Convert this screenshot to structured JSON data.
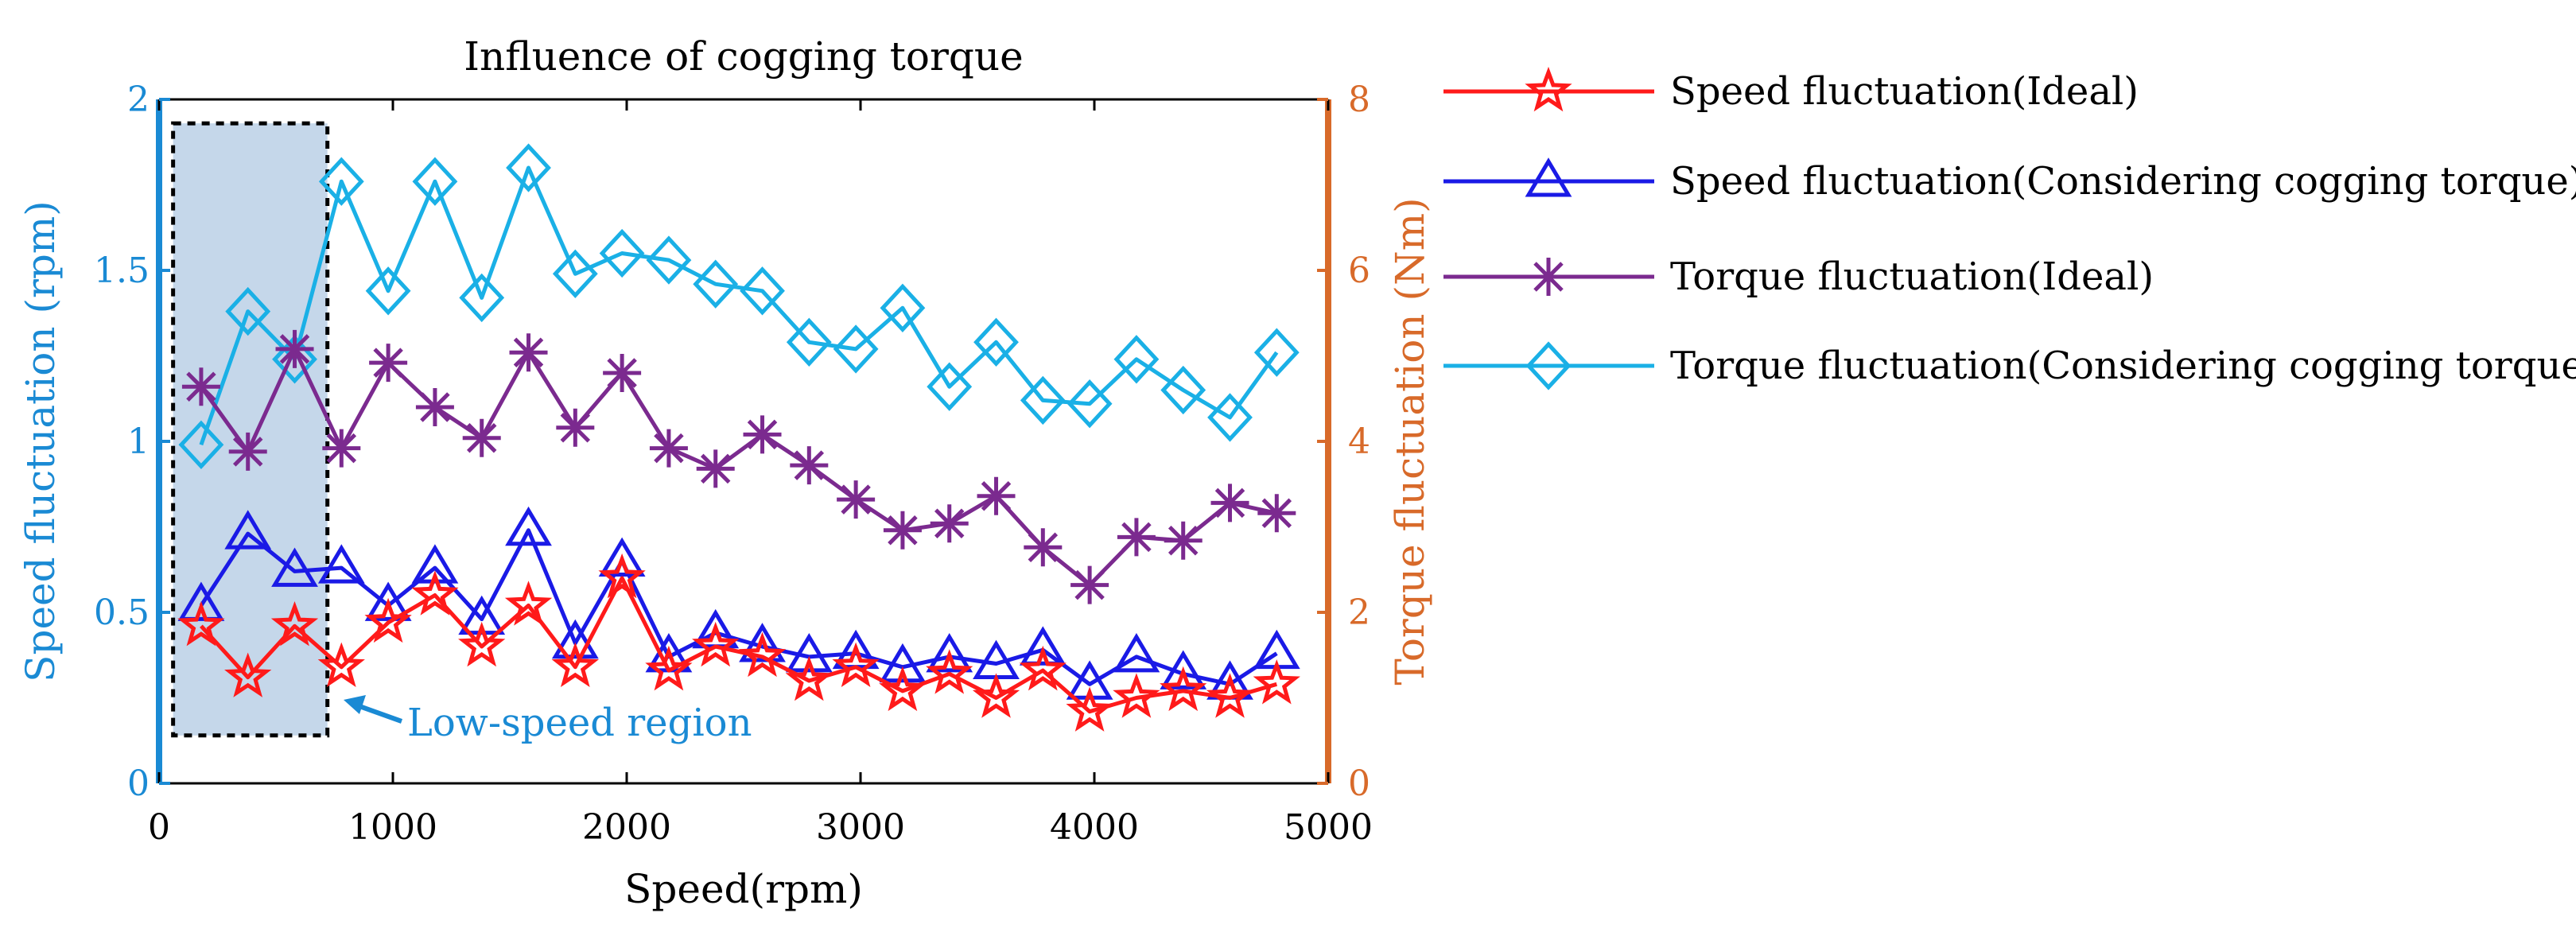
{
  "chart_data": {
    "type": "line",
    "title": "Influence of cogging torque",
    "xlabel": "Speed(rpm)",
    "ylabel_left": "Speed fluctuation (rpm)",
    "ylabel_right": "Torque fluctuation (Nm)",
    "xlim": [
      0,
      5000
    ],
    "ylim_left": [
      0,
      2
    ],
    "ylim_right": [
      0,
      8
    ],
    "x_ticks": [
      "0",
      "1000",
      "2000",
      "3000",
      "4000",
      "5000"
    ],
    "y_left_ticks": [
      "0",
      "0.5",
      "1",
      "1.5",
      "2"
    ],
    "y_right_ticks": [
      "0",
      "2",
      "4",
      "6",
      "8"
    ],
    "grid": false,
    "legend_position": "right",
    "annotation": "Low-speed region",
    "highlight_region": {
      "x": [
        60,
        720
      ],
      "y_left": [
        0.14,
        1.93
      ]
    },
    "colors": {
      "left_axis": "#1a8ad4",
      "right_axis": "#d86a2a",
      "red": "#ff1a1a",
      "blue": "#1a1ae6",
      "purple": "#7b2a8f",
      "cyan": "#1ab0e6",
      "region_fill": "#c5d7ea"
    },
    "x": [
      180,
      380,
      580,
      780,
      980,
      1180,
      1380,
      1580,
      1780,
      1980,
      2180,
      2380,
      2580,
      2780,
      2980,
      3180,
      3380,
      3580,
      3780,
      3980,
      4180,
      4380,
      4580,
      4780
    ],
    "series": [
      {
        "name": "Speed fluctuation(Ideal)",
        "axis": "left",
        "marker": "star",
        "color": "#ff1a1a",
        "values": [
          0.46,
          0.31,
          0.46,
          0.34,
          0.47,
          0.55,
          0.4,
          0.52,
          0.34,
          0.6,
          0.33,
          0.4,
          0.37,
          0.3,
          0.34,
          0.27,
          0.32,
          0.25,
          0.33,
          0.21,
          0.25,
          0.27,
          0.25,
          0.29
        ]
      },
      {
        "name": "Speed fluctuation(Considering cogging torque)",
        "axis": "left",
        "marker": "triangle",
        "color": "#1a1ae6",
        "values": [
          0.52,
          0.73,
          0.62,
          0.63,
          0.52,
          0.63,
          0.48,
          0.74,
          0.41,
          0.65,
          0.37,
          0.44,
          0.4,
          0.37,
          0.38,
          0.34,
          0.37,
          0.35,
          0.39,
          0.29,
          0.37,
          0.32,
          0.29,
          0.38
        ]
      },
      {
        "name": "Torque fluctuation(Ideal)",
        "axis": "right",
        "marker": "asterisk",
        "color": "#7b2a8f",
        "values": [
          4.64,
          3.88,
          5.08,
          3.92,
          4.92,
          4.4,
          4.04,
          5.04,
          4.16,
          4.8,
          3.92,
          3.68,
          4.08,
          3.72,
          3.32,
          2.96,
          3.04,
          3.36,
          2.76,
          2.32,
          2.88,
          2.84,
          3.28,
          3.16
        ]
      },
      {
        "name": "Torque fluctuation(Considering cogging torque)",
        "axis": "right",
        "marker": "diamond",
        "color": "#1ab0e6",
        "values": [
          3.96,
          5.52,
          4.96,
          7.04,
          5.76,
          7.04,
          5.68,
          7.2,
          5.96,
          6.2,
          6.12,
          5.84,
          5.76,
          5.16,
          5.08,
          5.56,
          4.64,
          5.16,
          4.48,
          4.44,
          4.96,
          4.6,
          4.28,
          5.04
        ]
      }
    ]
  }
}
